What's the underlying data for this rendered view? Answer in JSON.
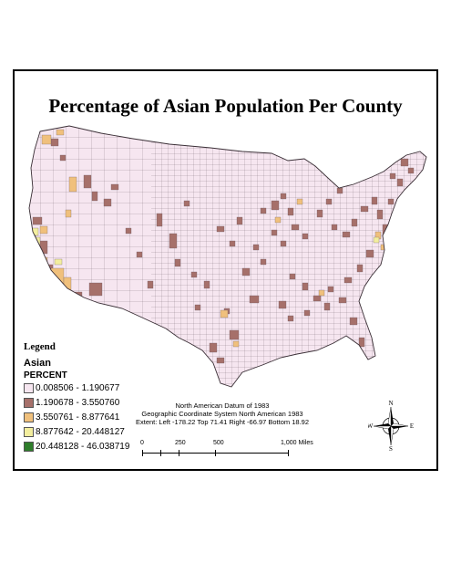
{
  "title": "Percentage of Asian Population Per County",
  "legend": {
    "title": "Legend",
    "layer": "Asian",
    "field": "PERCENT",
    "classes": [
      {
        "label": "0.008506 - 1.190677",
        "color": "#f6e6f0"
      },
      {
        "label": "1.190678 - 3.550760",
        "color": "#a6706a"
      },
      {
        "label": "3.550761 - 8.877641",
        "color": "#f0c07c"
      },
      {
        "label": "8.877642 - 20.448127",
        "color": "#f3ee9e"
      },
      {
        "label": "20.448128 - 46.038719",
        "color": "#2e7d2a"
      }
    ]
  },
  "info": {
    "datum": "North American Datum of 1983",
    "coords": "Geographic Coordinate System North American 1983",
    "extent": "Extent: Left -178.22 Top 71.41 Right -66.97 Bottom 18.92"
  },
  "scale_bar": {
    "labels": [
      "0",
      "250",
      "500",
      "1,000 Miles"
    ]
  },
  "compass": {
    "n": "N",
    "s": "S",
    "e": "E",
    "w": "W"
  }
}
